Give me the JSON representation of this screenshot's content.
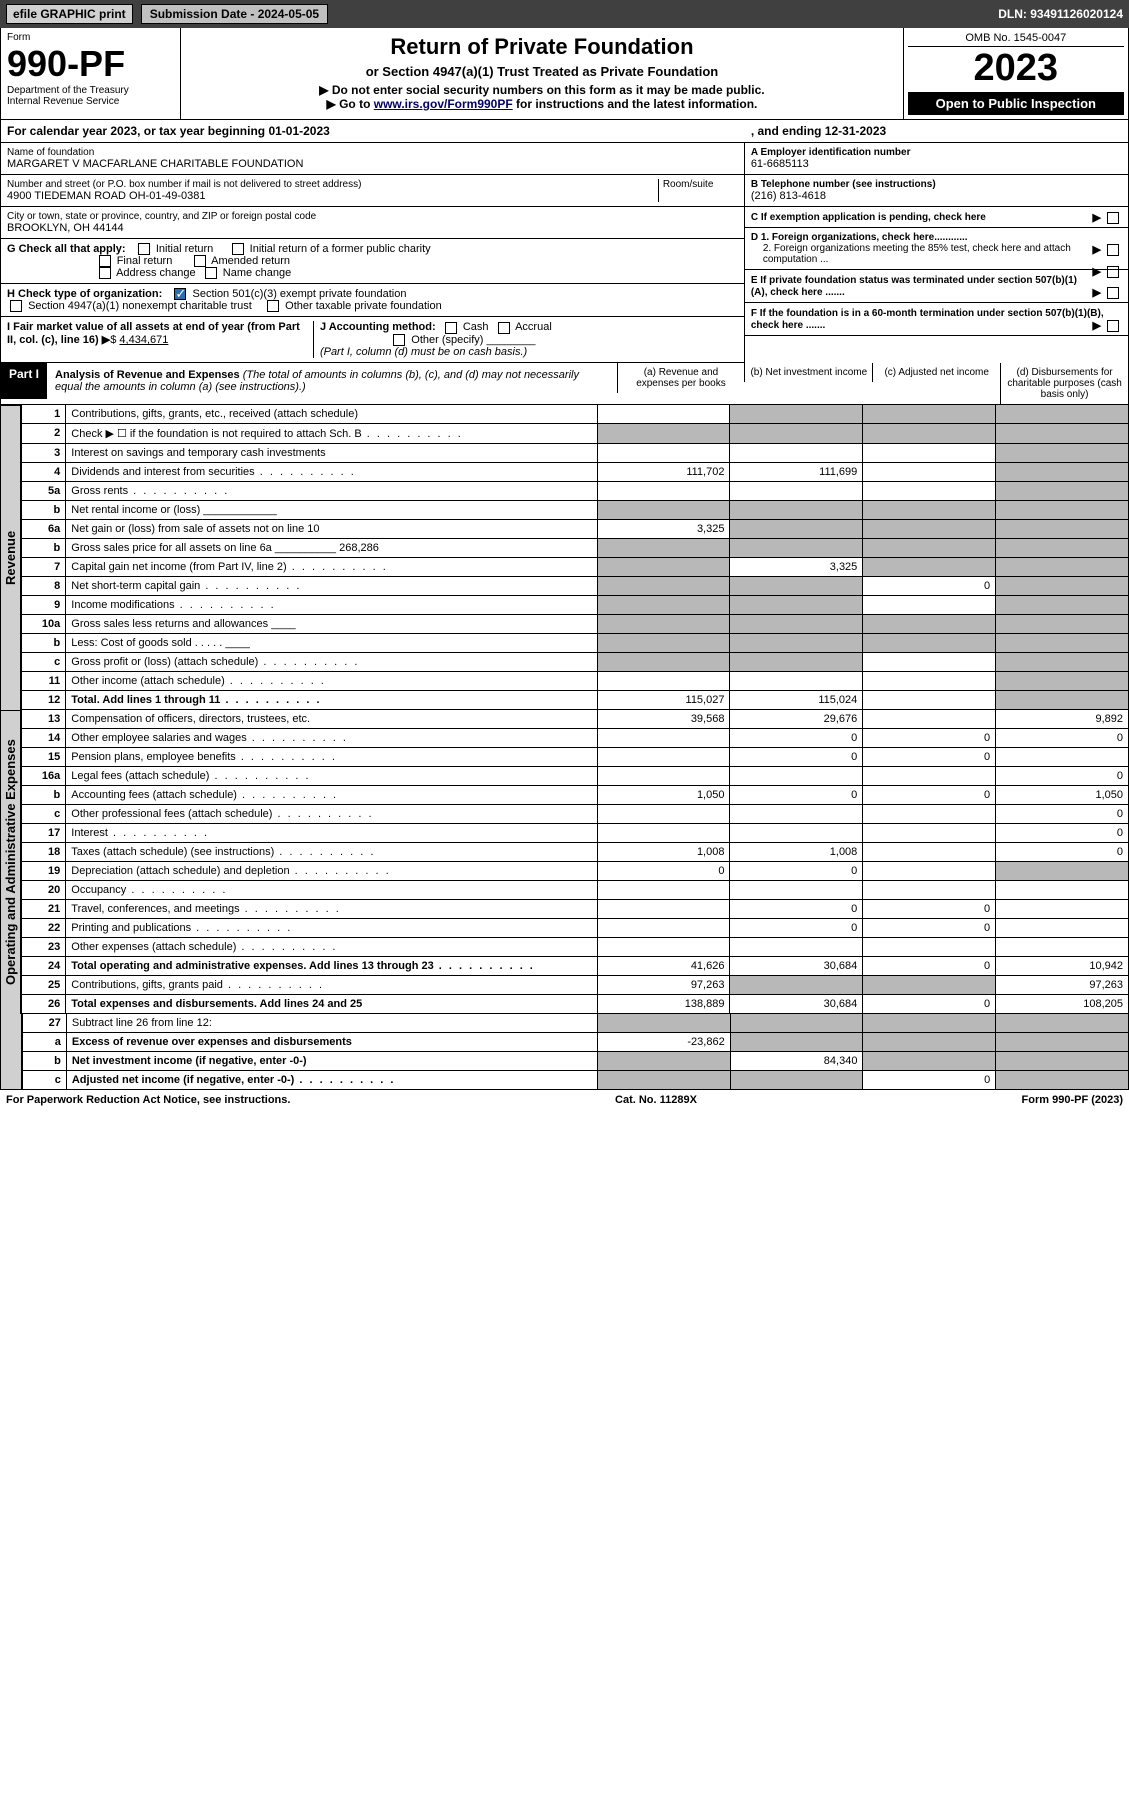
{
  "topbar": {
    "efile": "efile GRAPHIC print",
    "subdate_label": "Submission Date - 2024-05-05",
    "dln": "DLN: 93491126020124"
  },
  "header": {
    "form_word": "Form",
    "form_no": "990-PF",
    "dept": "Department of the Treasury",
    "irs": "Internal Revenue Service",
    "title": "Return of Private Foundation",
    "subtitle": "or Section 4947(a)(1) Trust Treated as Private Foundation",
    "instr1": "▶ Do not enter social security numbers on this form as it may be made public.",
    "instr2_pre": "▶ Go to ",
    "instr2_link": "www.irs.gov/Form990PF",
    "instr2_post": " for instructions and the latest information.",
    "omb": "OMB No. 1545-0047",
    "year": "2023",
    "open": "Open to Public Inspection"
  },
  "cal": {
    "left": "For calendar year 2023, or tax year beginning 01-01-2023",
    "right": ", and ending 12-31-2023"
  },
  "entity": {
    "name_label": "Name of foundation",
    "name": "MARGARET V MACFARLANE CHARITABLE FOUNDATION",
    "addr_label": "Number and street (or P.O. box number if mail is not delivered to street address)",
    "addr": "4900 TIEDEMAN ROAD OH-01-49-0381",
    "room_label": "Room/suite",
    "city_label": "City or town, state or province, country, and ZIP or foreign postal code",
    "city": "BROOKLYN, OH  44144",
    "A_label": "A Employer identification number",
    "A_val": "61-6685113",
    "B_label": "B Telephone number (see instructions)",
    "B_val": "(216) 813-4618",
    "C_label": "C If exemption application is pending, check here",
    "G_label": "G Check all that apply:",
    "G_opts": [
      "Initial return",
      "Final return",
      "Address change",
      "Initial return of a former public charity",
      "Amended return",
      "Name change"
    ],
    "D1": "D 1. Foreign organizations, check here............",
    "D2": "2. Foreign organizations meeting the 85% test, check here and attach computation ...",
    "E": "E  If private foundation status was terminated under section 507(b)(1)(A), check here .......",
    "H_label": "H Check type of organization:",
    "H1": "Section 501(c)(3) exempt private foundation",
    "H2": "Section 4947(a)(1) nonexempt charitable trust",
    "H3": "Other taxable private foundation",
    "I_label": "I Fair market value of all assets at end of year (from Part II, col. (c), line 16)",
    "I_val": "4,434,671",
    "J_label": "J Accounting method:",
    "J_opts": [
      "Cash",
      "Accrual",
      "Other (specify)"
    ],
    "J_note": "(Part I, column (d) must be on cash basis.)",
    "F": "F  If the foundation is in a 60-month termination under section 507(b)(1)(B), check here ......."
  },
  "part1": {
    "label": "Part I",
    "title": "Analysis of Revenue and Expenses",
    "title_note": " (The total of amounts in columns (b), (c), and (d) may not necessarily equal the amounts in column (a) (see instructions).)",
    "col_a": "(a)   Revenue and expenses per books",
    "col_b": "(b)   Net investment income",
    "col_c": "(c)   Adjusted net income",
    "col_d": "(d)   Disbursements for charitable purposes (cash basis only)"
  },
  "side_rev": "Revenue",
  "side_exp": "Operating and Administrative Expenses",
  "rows": [
    {
      "n": "1",
      "lbl": "Contributions, gifts, grants, etc., received (attach schedule)",
      "a": "",
      "b": "grey",
      "c": "grey",
      "d": "grey"
    },
    {
      "n": "2",
      "lbl": "Check ▶ ☐ if the foundation is not required to attach Sch. B",
      "a": "grey",
      "b": "grey",
      "c": "grey",
      "d": "grey",
      "dots": true
    },
    {
      "n": "3",
      "lbl": "Interest on savings and temporary cash investments",
      "a": "",
      "b": "",
      "c": "",
      "d": "grey"
    },
    {
      "n": "4",
      "lbl": "Dividends and interest from securities",
      "a": "111,702",
      "b": "111,699",
      "c": "",
      "d": "grey",
      "dots": true
    },
    {
      "n": "5a",
      "lbl": "Gross rents",
      "a": "",
      "b": "",
      "c": "",
      "d": "grey",
      "dots": true
    },
    {
      "n": "b",
      "lbl": "Net rental income or (loss)  ____________",
      "a": "grey",
      "b": "grey",
      "c": "grey",
      "d": "grey"
    },
    {
      "n": "6a",
      "lbl": "Net gain or (loss) from sale of assets not on line 10",
      "a": "3,325",
      "b": "grey",
      "c": "grey",
      "d": "grey"
    },
    {
      "n": "b",
      "lbl": "Gross sales price for all assets on line 6a __________ 268,286",
      "a": "grey",
      "b": "grey",
      "c": "grey",
      "d": "grey"
    },
    {
      "n": "7",
      "lbl": "Capital gain net income (from Part IV, line 2)",
      "a": "grey",
      "b": "3,325",
      "c": "grey",
      "d": "grey",
      "dots": true
    },
    {
      "n": "8",
      "lbl": "Net short-term capital gain",
      "a": "grey",
      "b": "grey",
      "c": "0",
      "d": "grey",
      "dots": true
    },
    {
      "n": "9",
      "lbl": "Income modifications",
      "a": "grey",
      "b": "grey",
      "c": "",
      "d": "grey",
      "dots": true
    },
    {
      "n": "10a",
      "lbl": "Gross sales less returns and allowances  ____",
      "a": "grey",
      "b": "grey",
      "c": "grey",
      "d": "grey"
    },
    {
      "n": "b",
      "lbl": "Less: Cost of goods sold     .   .   .   .   .   ____",
      "a": "grey",
      "b": "grey",
      "c": "grey",
      "d": "grey"
    },
    {
      "n": "c",
      "lbl": "Gross profit or (loss) (attach schedule)",
      "a": "grey",
      "b": "grey",
      "c": "",
      "d": "grey",
      "dots": true
    },
    {
      "n": "11",
      "lbl": "Other income (attach schedule)",
      "a": "",
      "b": "",
      "c": "",
      "d": "grey",
      "dots": true
    },
    {
      "n": "12",
      "lbl": "Total. Add lines 1 through 11",
      "a": "115,027",
      "b": "115,024",
      "c": "",
      "d": "grey",
      "bold": true,
      "dots": true
    }
  ],
  "rows2": [
    {
      "n": "13",
      "lbl": "Compensation of officers, directors, trustees, etc.",
      "a": "39,568",
      "b": "29,676",
      "c": "",
      "d": "9,892"
    },
    {
      "n": "14",
      "lbl": "Other employee salaries and wages",
      "a": "",
      "b": "0",
      "c": "0",
      "d": "0",
      "dots": true
    },
    {
      "n": "15",
      "lbl": "Pension plans, employee benefits",
      "a": "",
      "b": "0",
      "c": "0",
      "d": "",
      "dots": true
    },
    {
      "n": "16a",
      "lbl": "Legal fees (attach schedule)",
      "a": "",
      "b": "",
      "c": "",
      "d": "0",
      "dots": true
    },
    {
      "n": "b",
      "lbl": "Accounting fees (attach schedule)",
      "a": "1,050",
      "b": "0",
      "c": "0",
      "d": "1,050",
      "dots": true
    },
    {
      "n": "c",
      "lbl": "Other professional fees (attach schedule)",
      "a": "",
      "b": "",
      "c": "",
      "d": "0",
      "dots": true
    },
    {
      "n": "17",
      "lbl": "Interest",
      "a": "",
      "b": "",
      "c": "",
      "d": "0",
      "dots": true
    },
    {
      "n": "18",
      "lbl": "Taxes (attach schedule) (see instructions)",
      "a": "1,008",
      "b": "1,008",
      "c": "",
      "d": "0",
      "dots": true
    },
    {
      "n": "19",
      "lbl": "Depreciation (attach schedule) and depletion",
      "a": "0",
      "b": "0",
      "c": "",
      "d": "grey",
      "dots": true
    },
    {
      "n": "20",
      "lbl": "Occupancy",
      "a": "",
      "b": "",
      "c": "",
      "d": "",
      "dots": true
    },
    {
      "n": "21",
      "lbl": "Travel, conferences, and meetings",
      "a": "",
      "b": "0",
      "c": "0",
      "d": "",
      "dots": true
    },
    {
      "n": "22",
      "lbl": "Printing and publications",
      "a": "",
      "b": "0",
      "c": "0",
      "d": "",
      "dots": true
    },
    {
      "n": "23",
      "lbl": "Other expenses (attach schedule)",
      "a": "",
      "b": "",
      "c": "",
      "d": "",
      "dots": true
    },
    {
      "n": "24",
      "lbl": "Total operating and administrative expenses. Add lines 13 through 23",
      "a": "41,626",
      "b": "30,684",
      "c": "0",
      "d": "10,942",
      "bold": true,
      "dots": true
    },
    {
      "n": "25",
      "lbl": "Contributions, gifts, grants paid",
      "a": "97,263",
      "b": "grey",
      "c": "grey",
      "d": "97,263",
      "dots": true
    },
    {
      "n": "26",
      "lbl": "Total expenses and disbursements. Add lines 24 and 25",
      "a": "138,889",
      "b": "30,684",
      "c": "0",
      "d": "108,205",
      "bold": true
    }
  ],
  "rows3": [
    {
      "n": "27",
      "lbl": "Subtract line 26 from line 12:",
      "a": "grey",
      "b": "grey",
      "c": "grey",
      "d": "grey"
    },
    {
      "n": "a",
      "lbl": "Excess of revenue over expenses and disbursements",
      "a": "-23,862",
      "b": "grey",
      "c": "grey",
      "d": "grey",
      "bold": true
    },
    {
      "n": "b",
      "lbl": "Net investment income (if negative, enter -0-)",
      "a": "grey",
      "b": "84,340",
      "c": "grey",
      "d": "grey",
      "bold": true
    },
    {
      "n": "c",
      "lbl": "Adjusted net income (if negative, enter -0-)",
      "a": "grey",
      "b": "grey",
      "c": "0",
      "d": "grey",
      "bold": true,
      "dots": true
    }
  ],
  "footer": {
    "left": "For Paperwork Reduction Act Notice, see instructions.",
    "mid": "Cat. No. 11289X",
    "right": "Form 990-PF (2023)"
  }
}
